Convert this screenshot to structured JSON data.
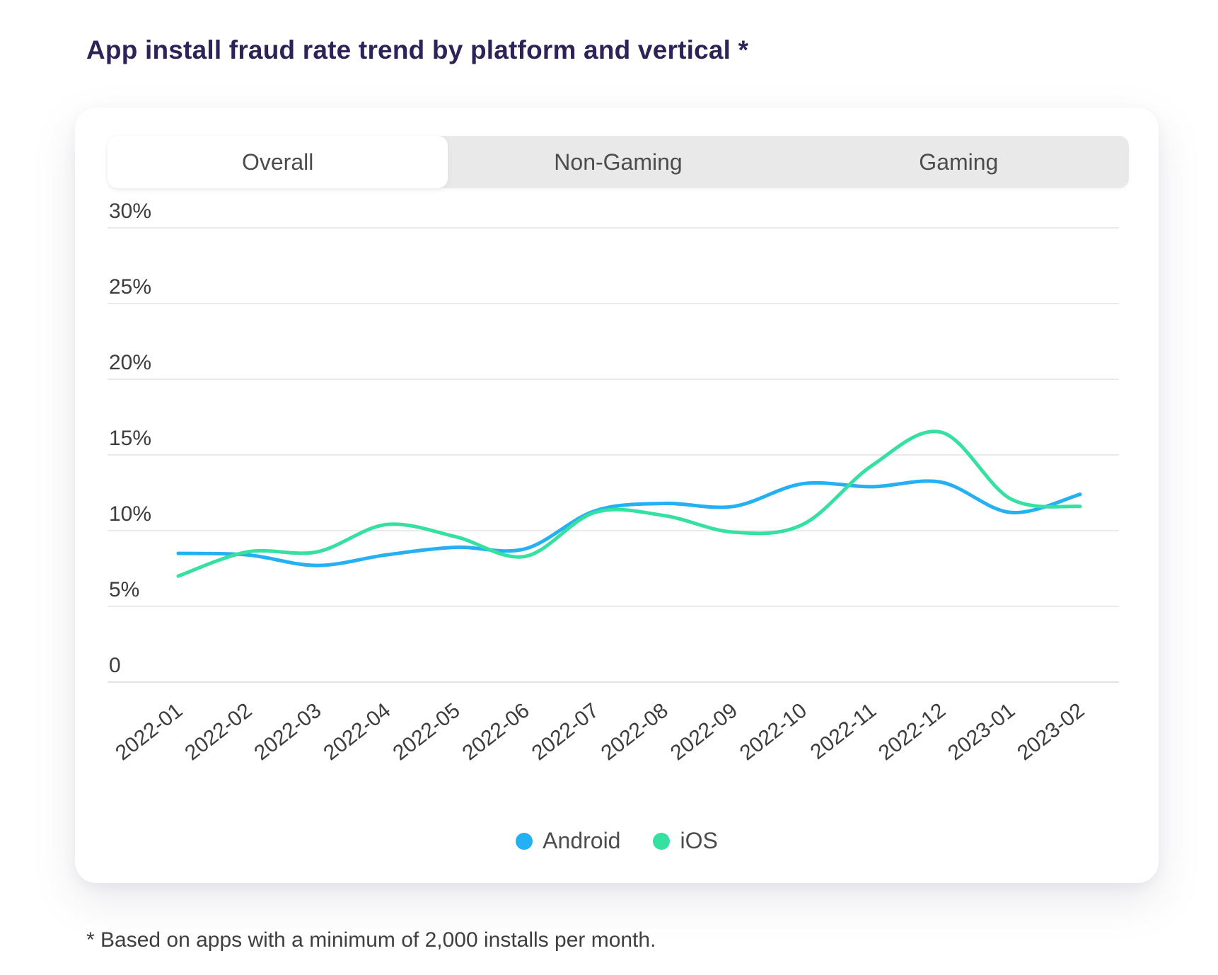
{
  "page": {
    "title": "App install fraud rate trend by platform and vertical *",
    "footnote": "* Based on apps with a minimum of 2,000 installs per month."
  },
  "tabs": [
    {
      "label": "Overall",
      "active": true
    },
    {
      "label": "Non-Gaming",
      "active": false
    },
    {
      "label": "Gaming",
      "active": false
    }
  ],
  "chart_data": {
    "type": "line",
    "title": "App install fraud rate trend by platform and vertical",
    "categories": [
      "2022-01",
      "2022-02",
      "2022-03",
      "2022-04",
      "2022-05",
      "2022-06",
      "2022-07",
      "2022-08",
      "2022-09",
      "2022-10",
      "2022-11",
      "2022-12",
      "2023-01",
      "2023-02"
    ],
    "y_ticks": [
      {
        "value": 30,
        "label": "30%"
      },
      {
        "value": 25,
        "label": "25%"
      },
      {
        "value": 20,
        "label": "20%"
      },
      {
        "value": 15,
        "label": "15%"
      },
      {
        "value": 10,
        "label": "10%"
      },
      {
        "value": 5,
        "label": "5%"
      },
      {
        "value": 0,
        "label": "0"
      }
    ],
    "ylim": [
      0,
      30
    ],
    "grid": "horizontal",
    "legend_position": "bottom",
    "series": [
      {
        "name": "Android",
        "color": "#24b0f2",
        "values": [
          8.5,
          8.4,
          7.7,
          8.4,
          8.9,
          8.8,
          11.3,
          11.8,
          11.6,
          13.1,
          12.9,
          13.2,
          11.2,
          12.4
        ]
      },
      {
        "name": "iOS",
        "color": "#35e0a1",
        "values": [
          7.0,
          8.6,
          8.6,
          10.4,
          9.6,
          8.3,
          11.2,
          11.0,
          9.9,
          10.4,
          14.3,
          16.5,
          12.1,
          11.6
        ]
      }
    ]
  }
}
